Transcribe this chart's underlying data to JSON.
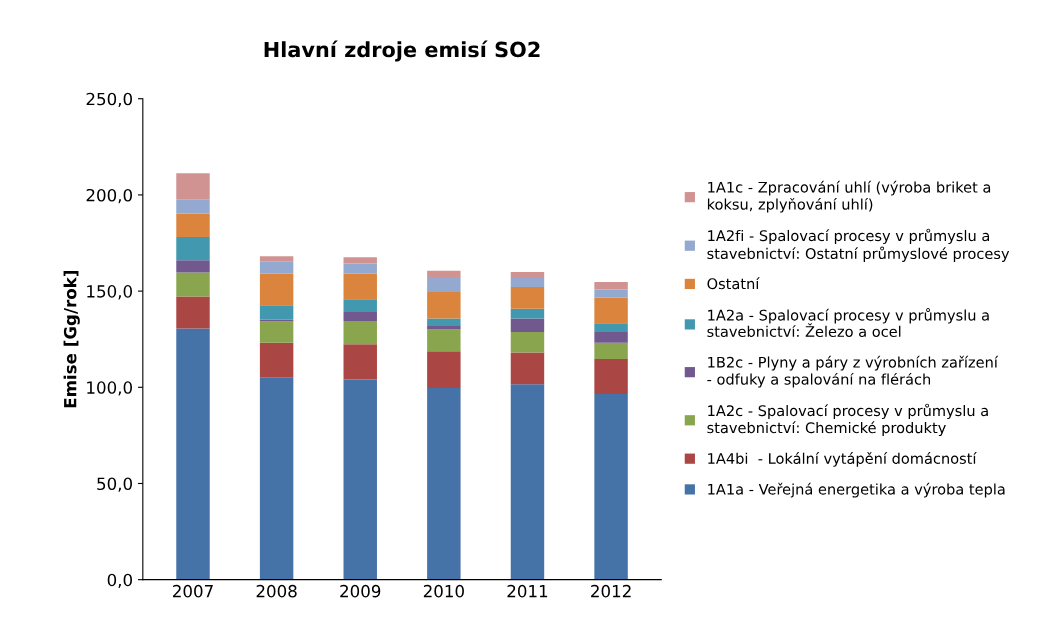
{
  "chart_data": {
    "type": "bar",
    "stacked": true,
    "title": "Hlavní zdroje emisí SO2",
    "ylabel": "Emise [Gg/rok]",
    "categories": [
      "2007",
      "2008",
      "2009",
      "2010",
      "2011",
      "2012"
    ],
    "ylim": [
      0,
      250
    ],
    "yticks": [
      {
        "value": 0,
        "label": "0,0"
      },
      {
        "value": 50,
        "label": "50,0"
      },
      {
        "value": 100,
        "label": "100,0"
      },
      {
        "value": 150,
        "label": "150,0"
      },
      {
        "value": 200,
        "label": "200,0"
      },
      {
        "value": 250,
        "label": "250,0"
      }
    ],
    "grid": false,
    "legend": "right",
    "series": [
      {
        "name": "1A1a - Veřejná energetika a výroba tepla",
        "color": "#4572a7",
        "values": [
          130.6,
          105.2,
          104.0,
          99.6,
          101.6,
          96.5
        ]
      },
      {
        "name": "1A4bi  - Lokální vytápění domácností",
        "color": "#aa4643",
        "values": [
          16.6,
          17.9,
          18.4,
          19.2,
          16.5,
          18.2
        ]
      },
      {
        "name": "1A2c - Spalovací procesy v průmyslu a stavebnictví: Chemické produkty",
        "color": "#89a54e",
        "values": [
          12.5,
          11.1,
          12.1,
          11.3,
          10.7,
          8.4
        ]
      },
      {
        "name": "1B2c - Plyny a páry z výrobních zařízení - odfuky a spalování na flérách",
        "color": "#71588f",
        "values": [
          6.4,
          1.1,
          4.6,
          1.8,
          7.0,
          5.7
        ]
      },
      {
        "name": "1A2a - Spalovací procesy v průmyslu a stavebnictví: Železo a ocel",
        "color": "#4198af",
        "values": [
          12.0,
          7.4,
          6.7,
          3.9,
          5.0,
          4.5
        ]
      },
      {
        "name": "Ostatní",
        "color": "#db843d",
        "values": [
          12.2,
          16.5,
          13.4,
          13.8,
          11.4,
          13.2
        ]
      },
      {
        "name": "1A2fi - Spalovací procesy v průmyslu a stavebnictví: Ostatní průmyslové procesy",
        "color": "#93a9cf",
        "values": [
          7.5,
          6.3,
          5.2,
          7.7,
          4.6,
          4.4
        ]
      },
      {
        "name": "1A1c - Zpracování uhlí (výroba briket a koksu, zplyňování uhlí)",
        "color": "#d19392",
        "values": [
          13.5,
          2.6,
          3.2,
          3.3,
          3.1,
          3.9
        ]
      }
    ]
  }
}
